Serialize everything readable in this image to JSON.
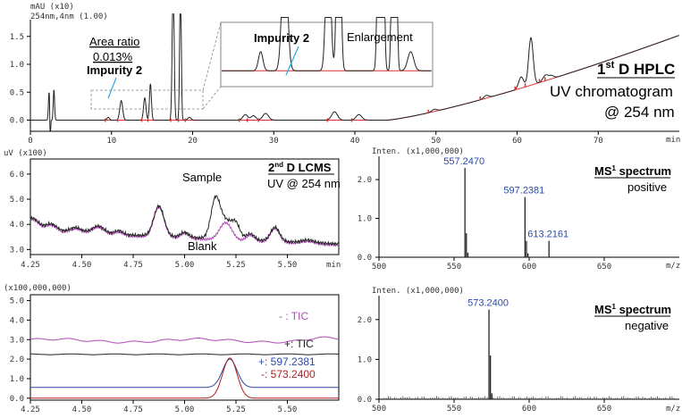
{
  "colors": {
    "trace": "#222222",
    "baseline": "#e03030",
    "callout": "#2aa8e0",
    "blank": "#b04ab8",
    "ms_label": "#2b4aa8",
    "tic_minus": "#b04ab8",
    "tic_plus": "#222222",
    "eic_blue": "#2b4aa8",
    "eic_red": "#b02020"
  },
  "chart_data": [
    {
      "id": "hplc",
      "type": "line",
      "units_top": "mAU (x10)",
      "channel": "254nm,4nm (1.00)",
      "xunit": "min",
      "xlim": [
        0,
        80
      ],
      "ylim": [
        -0.2,
        1.8
      ],
      "xticks": [
        0,
        10,
        20,
        30,
        40,
        50,
        60,
        70
      ],
      "yticks": [
        "0.0",
        "0.5",
        "1.0",
        "1.5"
      ],
      "yticks_val": [
        0,
        0.5,
        1.0,
        1.5
      ],
      "title_line1_pre": "1",
      "title_line1_sup": "st",
      "title_line1_post": " D HPLC",
      "title_line2": "UV chromatogram",
      "title_line3": "@ 254 nm",
      "area_ratio_label": "Area ratio",
      "area_ratio_value": "0.013%",
      "impurity_label": "Impurity 2",
      "inset_title": "Enlargement",
      "inset_impurity_label": "Impurity 2",
      "peaks": [
        {
          "t": 2.3,
          "h": 0.5,
          "w": 0.08
        },
        {
          "t": 2.9,
          "h": 0.55,
          "w": 0.08
        },
        {
          "t": 9.6,
          "h": 0.05,
          "w": 0.15
        },
        {
          "t": 11.2,
          "h": 0.35,
          "w": 0.18
        },
        {
          "t": 14.1,
          "h": 0.4,
          "w": 0.15
        },
        {
          "t": 14.8,
          "h": 0.65,
          "w": 0.12
        },
        {
          "t": 17.6,
          "h": 2.5,
          "w": 0.12
        },
        {
          "t": 18.5,
          "h": 2.5,
          "w": 0.1
        },
        {
          "t": 19.6,
          "h": 0.05,
          "w": 0.2
        },
        {
          "t": 26.5,
          "h": 0.1,
          "w": 0.3
        },
        {
          "t": 27.5,
          "h": 0.08,
          "w": 0.3
        },
        {
          "t": 29.0,
          "h": 0.12,
          "w": 0.35
        },
        {
          "t": 37.5,
          "h": 0.15,
          "w": 0.35
        },
        {
          "t": 40.5,
          "h": 0.1,
          "w": 0.35
        },
        {
          "t": 49.8,
          "h": 0.04,
          "w": 0.3
        },
        {
          "t": 56.2,
          "h": 0.05,
          "w": 0.3
        },
        {
          "t": 60.5,
          "h": 0.2,
          "w": 0.3
        },
        {
          "t": 61.7,
          "h": 0.85,
          "w": 0.28
        },
        {
          "t": 63.5,
          "h": 0.1,
          "w": 0.3
        },
        {
          "t": 64.2,
          "h": 0.06,
          "w": 0.3
        }
      ],
      "drift": {
        "start": 44,
        "end": 80,
        "rise_end": 1.52
      }
    },
    {
      "id": "uv2d",
      "type": "line",
      "units_top": "uV (x100)",
      "xunit": "min",
      "xlim": [
        4.25,
        5.75
      ],
      "ylim": [
        2.8,
        6.6
      ],
      "xticks": [
        "4.25",
        "4.50",
        "4.75",
        "5.00",
        "5.25",
        "5.50"
      ],
      "xticks_val": [
        4.25,
        4.5,
        4.75,
        5.0,
        5.25,
        5.5
      ],
      "yticks": [
        "3.0",
        "4.0",
        "5.0",
        "6.0"
      ],
      "yticks_val": [
        3.0,
        4.0,
        5.0,
        6.0
      ],
      "title_pre": "2",
      "title_sup": "nd",
      "title_post": " D LCMS",
      "subtitle": "UV @ 254 nm",
      "series": [
        {
          "name": "Sample"
        },
        {
          "name": "Blank"
        }
      ]
    },
    {
      "id": "ms_pos",
      "type": "bar",
      "units_top": "Inten. (x1,000,000)",
      "xunit": "m/z",
      "xlim": [
        500,
        700
      ],
      "ylim": [
        0,
        2.6
      ],
      "xticks": [
        "500",
        "550",
        "600",
        "650"
      ],
      "xticks_val": [
        500,
        550,
        600,
        650
      ],
      "yticks": [
        "0.0",
        "1.0",
        "2.0"
      ],
      "yticks_val": [
        0,
        1.0,
        2.0
      ],
      "title_pre": "MS",
      "title_sup": "1",
      "title_post": " spectrum",
      "subtitle": "positive",
      "peaks": [
        {
          "mz": 557.247,
          "i": 2.3,
          "label": "557.2470"
        },
        {
          "mz": 558.2,
          "i": 0.62
        },
        {
          "mz": 559.2,
          "i": 0.12
        },
        {
          "mz": 597.2381,
          "i": 1.55,
          "label": "597.2381"
        },
        {
          "mz": 598.2,
          "i": 0.42
        },
        {
          "mz": 599.2,
          "i": 0.1
        },
        {
          "mz": 613.2161,
          "i": 0.42,
          "label": "613.2161"
        }
      ]
    },
    {
      "id": "eic",
      "type": "line",
      "units_top": "(x100,000,000)",
      "xunit": "min",
      "xlim": [
        4.25,
        5.75
      ],
      "ylim": [
        -0.1,
        5.3
      ],
      "xticks": [
        "4.25",
        "4.50",
        "4.75",
        "5.00",
        "5.25",
        "5.50"
      ],
      "xticks_val": [
        4.25,
        4.5,
        4.75,
        5.0,
        5.25,
        5.5
      ],
      "yticks": [
        "0.0",
        "1.0",
        "2.0",
        "3.0",
        "4.0",
        "5.0"
      ],
      "yticks_val": [
        0,
        1.0,
        2.0,
        3.0,
        4.0,
        5.0
      ],
      "series": [
        {
          "name": "- : TIC",
          "base": 2.95
        },
        {
          "name": "+: TIC",
          "base": 2.25
        },
        {
          "name": "+: 597.2381",
          "base": 0.55,
          "peak": 2.0
        },
        {
          "name": "-: 573.2400",
          "base": 0.0,
          "peak": 2.0
        }
      ]
    },
    {
      "id": "ms_neg",
      "type": "bar",
      "units_top": "Inten. (x1,000,000)",
      "xunit": "m/z",
      "xlim": [
        500,
        700
      ],
      "ylim": [
        0,
        2.6
      ],
      "xticks": [
        "500",
        "550",
        "600",
        "650"
      ],
      "xticks_val": [
        500,
        550,
        600,
        650
      ],
      "yticks": [
        "0.0",
        "1.0",
        "2.0"
      ],
      "yticks_val": [
        0,
        1.0,
        2.0
      ],
      "title_pre": "MS",
      "title_sup": "1",
      "title_post": " spectrum",
      "subtitle": "negative",
      "peaks": [
        {
          "mz": 573.24,
          "i": 2.25,
          "label": "573.2400"
        },
        {
          "mz": 574.2,
          "i": 1.1
        },
        {
          "mz": 575.2,
          "i": 0.15
        }
      ]
    }
  ]
}
